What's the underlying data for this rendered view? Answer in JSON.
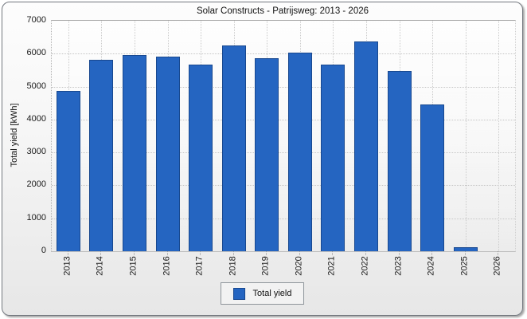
{
  "window": {
    "title": "Solar Constructs - Patrijsweg: 2013 - 2026"
  },
  "chart_data": {
    "type": "bar",
    "title": "Solar Constructs - Patrijsweg: 2013 - 2026",
    "xlabel": "",
    "ylabel": "Total yield [kWh]",
    "categories": [
      "2013",
      "2014",
      "2015",
      "2016",
      "2017",
      "2018",
      "2019",
      "2020",
      "2021",
      "2022",
      "2023",
      "2024",
      "2025",
      "2026"
    ],
    "values": [
      4860,
      5820,
      5950,
      5910,
      5670,
      6250,
      5860,
      6030,
      5660,
      6370,
      5480,
      4460,
      130,
      0
    ],
    "series": [
      {
        "name": "Total yield",
        "values": [
          4860,
          5820,
          5950,
          5910,
          5670,
          6250,
          5860,
          6030,
          5660,
          6370,
          5480,
          4460,
          130,
          0
        ]
      }
    ],
    "ylim": [
      0,
      7000
    ],
    "yticks": [
      0,
      1000,
      2000,
      3000,
      4000,
      5000,
      6000,
      7000
    ],
    "grid": true,
    "legend": {
      "position": "bottom",
      "entries": [
        "Total yield"
      ]
    }
  },
  "colors": {
    "bar_fill": "#2565c1",
    "bar_border": "#18488f",
    "grid_line": "#c8c8c8",
    "plot_border": "#a6a6a6",
    "frame_border": "#73787f",
    "legend_border": "#8f959b",
    "text": "#1a1a1a"
  }
}
